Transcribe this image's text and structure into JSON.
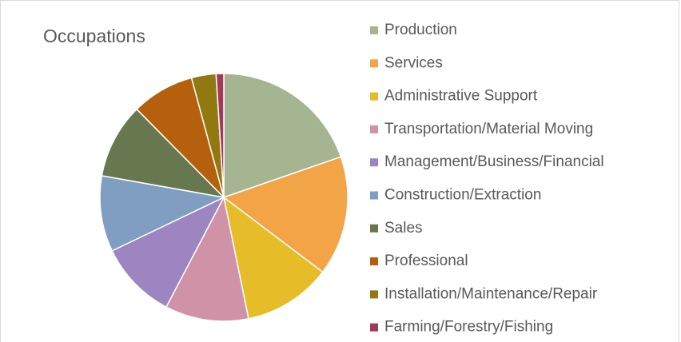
{
  "chart_data": {
    "type": "pie",
    "title": "Occupations",
    "categories": [
      "Production",
      "Services",
      "Administrative Support",
      "Transportation/Material Moving",
      "Management/Business/Financial",
      "Construction/Extraction",
      "Sales",
      "Professional",
      "Installation/Maintenance/Repair",
      "Farming/Forestry/Fishing"
    ],
    "values": [
      19.7,
      15.6,
      11.5,
      10.9,
      10.2,
      9.9,
      9.8,
      8.2,
      3.2,
      1.0
    ],
    "colors": [
      "#a5b592",
      "#f3a447",
      "#e7bc29",
      "#d092a7",
      "#9c85c0",
      "#809ec2",
      "#67784f",
      "#b4600d",
      "#917810",
      "#a03a5a"
    ],
    "legend": "right"
  }
}
